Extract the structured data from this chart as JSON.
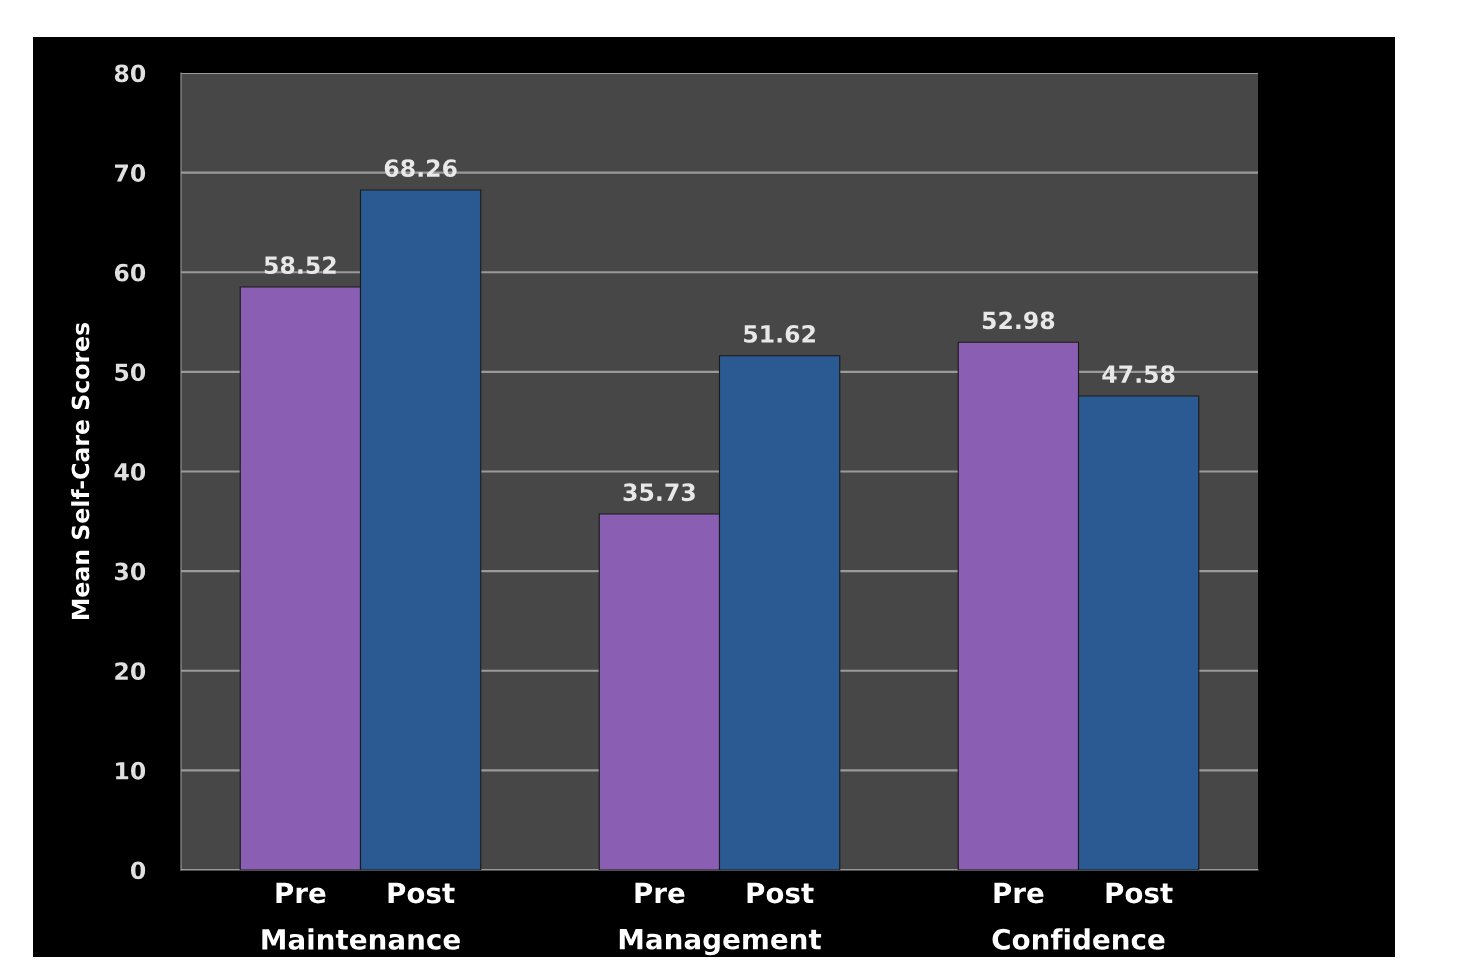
{
  "chart_data": {
    "type": "bar",
    "ylabel": "Mean Self-Care Scores",
    "categories": [
      "Maintenance",
      "Management",
      "Confidence"
    ],
    "series": [
      {
        "name": "Pre",
        "color": "#8a5fb3",
        "values": [
          58.52,
          35.73,
          52.98
        ]
      },
      {
        "name": "Post",
        "color": "#2b5a93",
        "values": [
          68.26,
          51.62,
          47.58
        ]
      }
    ],
    "ylim": [
      0,
      80
    ],
    "yticks": [
      0,
      10,
      20,
      30,
      40,
      50,
      60,
      70,
      80
    ],
    "grid": "y",
    "data_labels": true
  }
}
